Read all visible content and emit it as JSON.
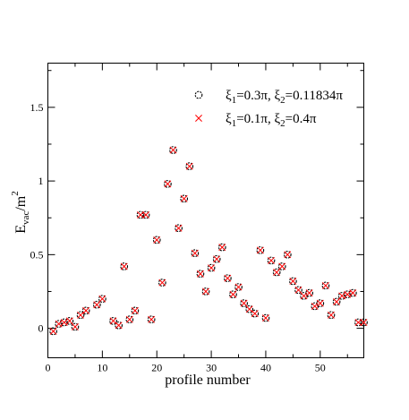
{
  "chart_data": {
    "type": "scatter",
    "xlabel": "profile number",
    "ylabel": {
      "main": "E",
      "sub": "vac",
      "tail": "/m",
      "sup": "2"
    },
    "xlim": [
      0,
      58
    ],
    "ylim": [
      -0.2,
      1.8
    ],
    "xticks": [
      0,
      10,
      20,
      30,
      40,
      50
    ],
    "xtick_labels": [
      "0",
      "10",
      "20",
      "30",
      "40",
      "50"
    ],
    "yticks": [
      0,
      0.5,
      1,
      1.5
    ],
    "ytick_labels": [
      "0",
      "0.5",
      "1",
      "1.5"
    ],
    "legend_position": "top-right",
    "x": [
      1,
      2,
      3,
      4,
      5,
      6,
      7,
      9,
      10,
      12,
      13,
      14,
      15,
      16,
      17,
      18,
      19,
      20,
      21,
      22,
      23,
      24,
      25,
      26,
      27,
      28,
      29,
      30,
      31,
      32,
      33,
      34,
      35,
      36,
      37,
      38,
      39,
      40,
      41,
      42,
      43,
      44,
      45,
      46,
      47,
      48,
      49,
      50,
      51,
      52,
      53,
      54,
      55,
      56,
      57,
      58
    ],
    "series": [
      {
        "marker": "circle",
        "color": "#000000",
        "legend": {
          "pre": "ξ",
          "s1": "1",
          "mid": "=0.3π,  ξ",
          "s2": "2",
          "post": "=0.11834π"
        },
        "values": [
          -0.02,
          0.03,
          0.04,
          0.05,
          0.01,
          0.09,
          0.12,
          0.16,
          0.2,
          0.05,
          0.02,
          0.42,
          0.06,
          0.12,
          0.77,
          0.77,
          0.06,
          0.6,
          0.31,
          0.98,
          1.21,
          0.68,
          0.88,
          1.1,
          0.51,
          0.37,
          0.25,
          0.41,
          0.47,
          0.55,
          0.34,
          0.23,
          0.28,
          0.17,
          0.13,
          0.1,
          0.53,
          0.07,
          0.46,
          0.38,
          0.42,
          0.5,
          0.32,
          0.26,
          0.22,
          0.24,
          0.15,
          0.17,
          0.29,
          0.09,
          0.18,
          0.22,
          0.23,
          0.24,
          0.04,
          0.04
        ]
      },
      {
        "marker": "x",
        "color": "#ff0000",
        "legend": {
          "pre": "ξ",
          "s1": "1",
          "mid": "=0.1π,  ξ",
          "s2": "2",
          "post": "=0.4π"
        },
        "values": [
          -0.02,
          0.03,
          0.04,
          0.05,
          0.01,
          0.09,
          0.12,
          0.16,
          0.2,
          0.05,
          0.02,
          0.42,
          0.06,
          0.12,
          0.77,
          0.77,
          0.06,
          0.6,
          0.31,
          0.98,
          1.21,
          0.68,
          0.88,
          1.1,
          0.51,
          0.37,
          0.25,
          0.41,
          0.47,
          0.55,
          0.34,
          0.23,
          0.28,
          0.17,
          0.13,
          0.1,
          0.53,
          0.07,
          0.46,
          0.38,
          0.42,
          0.5,
          0.32,
          0.26,
          0.22,
          0.24,
          0.15,
          0.17,
          0.29,
          0.09,
          0.18,
          0.22,
          0.23,
          0.24,
          0.04,
          0.04
        ]
      }
    ]
  }
}
